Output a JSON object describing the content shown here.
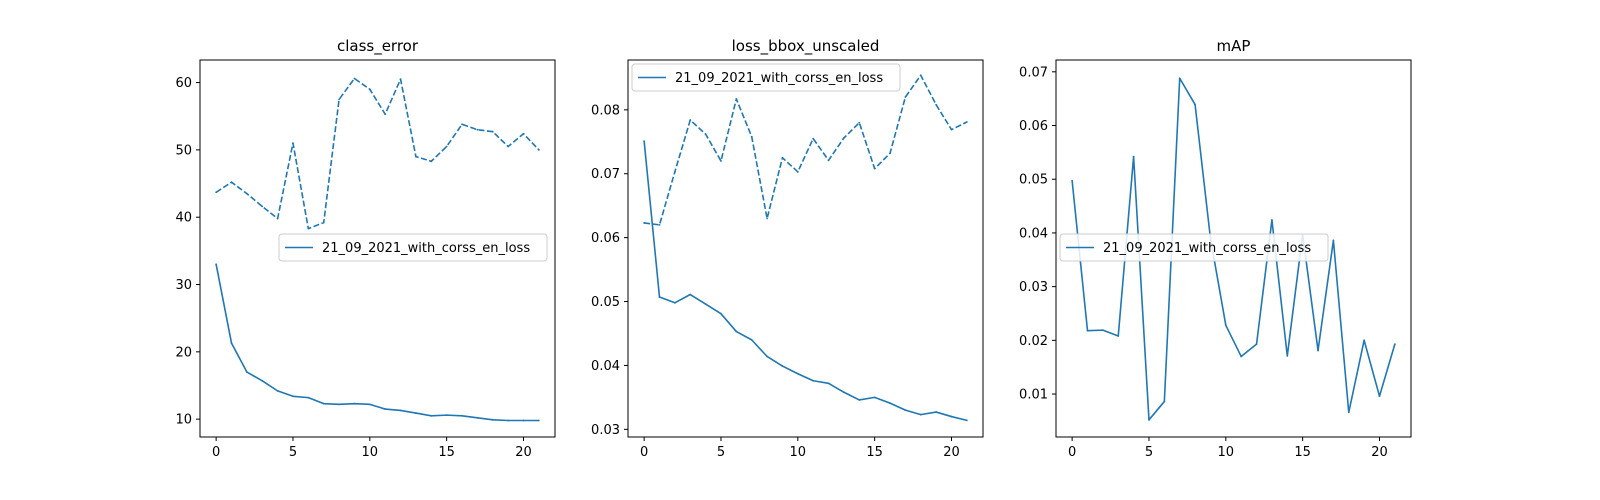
{
  "chart_data": [
    {
      "type": "line",
      "title": "class_error",
      "xlabel": "",
      "ylabel": "",
      "xlim": [
        -1.05,
        22.05
      ],
      "ylim": [
        7.35,
        63.35
      ],
      "x_ticks": [
        0,
        5,
        10,
        15,
        20
      ],
      "y_ticks": [
        10,
        20,
        30,
        40,
        50,
        60
      ],
      "tick_decimals": 0,
      "legend": {
        "placement": "center-right",
        "labels": [
          "21_09_2021_with_corss_en_loss"
        ]
      },
      "color": "#1f77b4",
      "x": [
        0,
        1,
        2,
        3,
        4,
        5,
        6,
        7,
        8,
        9,
        10,
        11,
        12,
        13,
        14,
        15,
        16,
        17,
        18,
        19,
        20,
        21
      ],
      "series": [
        {
          "name": "21_09_2021_with_corss_en_loss",
          "style": "solid",
          "values": [
            33.0,
            21.3,
            17.0,
            15.7,
            14.2,
            13.4,
            13.2,
            12.3,
            12.2,
            12.3,
            12.2,
            11.5,
            11.3,
            10.9,
            10.5,
            10.6,
            10.5,
            10.2,
            9.9,
            9.8,
            9.8,
            9.8
          ]
        },
        {
          "name": "",
          "style": "dashed",
          "values": [
            43.7,
            45.2,
            43.5,
            41.6,
            39.8,
            51.0,
            38.3,
            39.2,
            57.5,
            60.6,
            59.0,
            55.3,
            60.5,
            49.0,
            48.3,
            50.5,
            53.8,
            53.0,
            52.7,
            50.5,
            52.4,
            50.0
          ]
        }
      ]
    },
    {
      "type": "line",
      "title": "loss_bbox_unscaled",
      "xlabel": "",
      "ylabel": "",
      "xlim": [
        -1.05,
        22.05
      ],
      "ylim": [
        0.0288,
        0.0878
      ],
      "x_ticks": [
        0,
        5,
        10,
        15,
        20
      ],
      "y_ticks": [
        0.03,
        0.04,
        0.05,
        0.06,
        0.07,
        0.08
      ],
      "tick_decimals": 2,
      "legend": {
        "placement": "upper-left",
        "labels": [
          "21_09_2021_with_corss_en_loss"
        ]
      },
      "color": "#1f77b4",
      "x": [
        0,
        1,
        2,
        3,
        4,
        5,
        6,
        7,
        8,
        9,
        10,
        11,
        12,
        13,
        14,
        15,
        16,
        17,
        18,
        19,
        20,
        21
      ],
      "series": [
        {
          "name": "21_09_2021_with_corss_en_loss",
          "style": "solid",
          "values": [
            0.0751,
            0.0507,
            0.0498,
            0.0511,
            0.0496,
            0.0481,
            0.0453,
            0.044,
            0.0414,
            0.0399,
            0.0387,
            0.0376,
            0.0372,
            0.0358,
            0.0346,
            0.035,
            0.0341,
            0.033,
            0.0323,
            0.0327,
            0.032,
            0.0314
          ]
        },
        {
          "name": "",
          "style": "dashed",
          "values": [
            0.0623,
            0.062,
            0.0703,
            0.0784,
            0.0762,
            0.072,
            0.0817,
            0.0758,
            0.063,
            0.0725,
            0.0703,
            0.0755,
            0.0721,
            0.0756,
            0.078,
            0.0708,
            0.0732,
            0.082,
            0.0854,
            0.0808,
            0.0769,
            0.0781
          ]
        }
      ]
    },
    {
      "type": "line",
      "title": "mAP",
      "xlabel": "",
      "ylabel": "",
      "xlim": [
        -1.05,
        22.05
      ],
      "ylim": [
        0.002,
        0.0722
      ],
      "x_ticks": [
        0,
        5,
        10,
        15,
        20
      ],
      "y_ticks": [
        0.01,
        0.02,
        0.03,
        0.04,
        0.05,
        0.06,
        0.07
      ],
      "tick_decimals": 2,
      "legend": {
        "placement": "center-left",
        "labels": [
          "21_09_2021_with_corss_en_loss"
        ]
      },
      "color": "#1f77b4",
      "x": [
        0,
        1,
        2,
        3,
        4,
        5,
        6,
        7,
        8,
        9,
        10,
        11,
        12,
        13,
        14,
        15,
        16,
        17,
        18,
        19,
        20,
        21
      ],
      "series": [
        {
          "name": "21_09_2021_with_corss_en_loss",
          "style": "solid",
          "values": [
            0.0497,
            0.0218,
            0.0219,
            0.0208,
            0.0542,
            0.0052,
            0.0086,
            0.0688,
            0.0639,
            0.039,
            0.0228,
            0.017,
            0.0193,
            0.0424,
            0.0171,
            0.0397,
            0.0181,
            0.0386,
            0.0066,
            0.02,
            0.0096,
            0.0193
          ]
        }
      ]
    }
  ]
}
